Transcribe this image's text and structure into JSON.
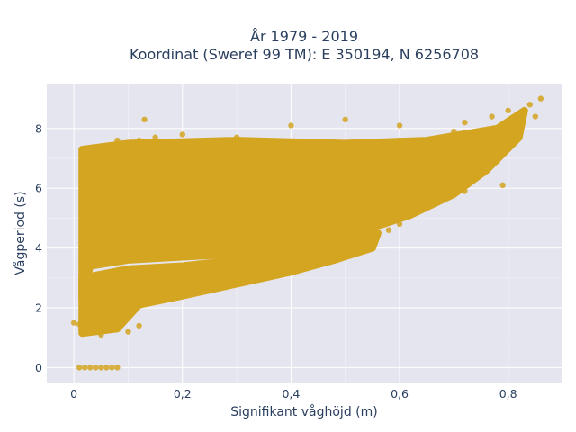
{
  "chart_data": {
    "type": "scatter",
    "title_line1": "År 1979 - 2019",
    "title_line2": "Koordinat (Sweref 99 TM): E 350194, N 6256708",
    "xlabel": "Signifikant våghöjd (m)",
    "ylabel": "Vågperiod (s)",
    "xlim": [
      -0.05,
      0.9
    ],
    "ylim": [
      -0.5,
      9.5
    ],
    "x_ticks": [
      0,
      0.2,
      0.4,
      0.6,
      0.8
    ],
    "x_tick_labels": [
      "0",
      "0,2",
      "0,4",
      "0,6",
      "0,8"
    ],
    "y_ticks": [
      0,
      2,
      4,
      6,
      8
    ],
    "y_tick_labels": [
      "0",
      "2",
      "4",
      "6",
      "8"
    ],
    "grid": true,
    "legend": "none",
    "marker_color": "#D4A520",
    "plot_background": "#e5e5ef",
    "points": [
      {
        "x": 0.0,
        "y": 1.5
      },
      {
        "x": 0.01,
        "y": 1.45
      },
      {
        "x": 0.01,
        "y": 0.0
      },
      {
        "x": 0.02,
        "y": 0.0
      },
      {
        "x": 0.03,
        "y": 0.0
      },
      {
        "x": 0.04,
        "y": 0.0
      },
      {
        "x": 0.05,
        "y": 0.0
      },
      {
        "x": 0.06,
        "y": 0.0
      },
      {
        "x": 0.07,
        "y": 0.0
      },
      {
        "x": 0.08,
        "y": 0.0
      },
      {
        "x": 0.02,
        "y": 1.2
      },
      {
        "x": 0.03,
        "y": 1.4
      },
      {
        "x": 0.05,
        "y": 1.1
      },
      {
        "x": 0.06,
        "y": 1.5
      },
      {
        "x": 0.08,
        "y": 1.3
      },
      {
        "x": 0.1,
        "y": 1.2
      },
      {
        "x": 0.12,
        "y": 1.4
      },
      {
        "x": 0.02,
        "y": 2.0
      },
      {
        "x": 0.03,
        "y": 2.6
      },
      {
        "x": 0.04,
        "y": 3.0
      },
      {
        "x": 0.05,
        "y": 3.6
      },
      {
        "x": 0.06,
        "y": 4.2
      },
      {
        "x": 0.07,
        "y": 4.8
      },
      {
        "x": 0.08,
        "y": 5.4
      },
      {
        "x": 0.03,
        "y": 6.0
      },
      {
        "x": 0.04,
        "y": 6.6
      },
      {
        "x": 0.05,
        "y": 7.0
      },
      {
        "x": 0.06,
        "y": 7.4
      },
      {
        "x": 0.08,
        "y": 7.6
      },
      {
        "x": 0.1,
        "y": 7.2
      },
      {
        "x": 0.12,
        "y": 7.6
      },
      {
        "x": 0.13,
        "y": 8.3
      },
      {
        "x": 0.15,
        "y": 7.7
      },
      {
        "x": 0.1,
        "y": 2.2
      },
      {
        "x": 0.12,
        "y": 2.8
      },
      {
        "x": 0.15,
        "y": 3.3
      },
      {
        "x": 0.18,
        "y": 2.5
      },
      {
        "x": 0.2,
        "y": 2.9
      },
      {
        "x": 0.22,
        "y": 3.4
      },
      {
        "x": 0.25,
        "y": 2.7
      },
      {
        "x": 0.28,
        "y": 3.1
      },
      {
        "x": 0.3,
        "y": 2.9
      },
      {
        "x": 0.33,
        "y": 3.3
      },
      {
        "x": 0.35,
        "y": 3.0
      },
      {
        "x": 0.38,
        "y": 3.5
      },
      {
        "x": 0.4,
        "y": 3.3
      },
      {
        "x": 0.42,
        "y": 3.7
      },
      {
        "x": 0.45,
        "y": 3.5
      },
      {
        "x": 0.48,
        "y": 3.9
      },
      {
        "x": 0.5,
        "y": 3.8
      },
      {
        "x": 0.53,
        "y": 4.2
      },
      {
        "x": 0.55,
        "y": 4.3
      },
      {
        "x": 0.58,
        "y": 4.6
      },
      {
        "x": 0.6,
        "y": 4.8
      },
      {
        "x": 0.62,
        "y": 5.2
      },
      {
        "x": 0.65,
        "y": 5.5
      },
      {
        "x": 0.68,
        "y": 5.9
      },
      {
        "x": 0.7,
        "y": 6.2
      },
      {
        "x": 0.72,
        "y": 6.6
      },
      {
        "x": 0.75,
        "y": 7.0
      },
      {
        "x": 0.78,
        "y": 7.4
      },
      {
        "x": 0.8,
        "y": 7.8
      },
      {
        "x": 0.82,
        "y": 8.3
      },
      {
        "x": 0.84,
        "y": 8.8
      },
      {
        "x": 0.86,
        "y": 9.0
      },
      {
        "x": 0.1,
        "y": 4.0
      },
      {
        "x": 0.12,
        "y": 5.0
      },
      {
        "x": 0.14,
        "y": 6.0
      },
      {
        "x": 0.16,
        "y": 4.5
      },
      {
        "x": 0.18,
        "y": 5.5
      },
      {
        "x": 0.2,
        "y": 6.5
      },
      {
        "x": 0.2,
        "y": 7.8
      },
      {
        "x": 0.22,
        "y": 4.6
      },
      {
        "x": 0.25,
        "y": 5.3
      },
      {
        "x": 0.27,
        "y": 6.3
      },
      {
        "x": 0.3,
        "y": 7.7
      },
      {
        "x": 0.32,
        "y": 4.9
      },
      {
        "x": 0.35,
        "y": 5.6
      },
      {
        "x": 0.37,
        "y": 6.5
      },
      {
        "x": 0.4,
        "y": 7.5
      },
      {
        "x": 0.4,
        "y": 8.1
      },
      {
        "x": 0.43,
        "y": 5.1
      },
      {
        "x": 0.45,
        "y": 5.9
      },
      {
        "x": 0.47,
        "y": 6.8
      },
      {
        "x": 0.5,
        "y": 7.4
      },
      {
        "x": 0.5,
        "y": 8.3
      },
      {
        "x": 0.53,
        "y": 5.4
      },
      {
        "x": 0.55,
        "y": 6.1
      },
      {
        "x": 0.57,
        "y": 7.0
      },
      {
        "x": 0.6,
        "y": 7.6
      },
      {
        "x": 0.6,
        "y": 8.1
      },
      {
        "x": 0.62,
        "y": 6.1
      },
      {
        "x": 0.65,
        "y": 6.8
      },
      {
        "x": 0.67,
        "y": 7.4
      },
      {
        "x": 0.7,
        "y": 7.9
      },
      {
        "x": 0.72,
        "y": 8.2
      },
      {
        "x": 0.75,
        "y": 7.6
      },
      {
        "x": 0.77,
        "y": 8.4
      },
      {
        "x": 0.8,
        "y": 8.6
      },
      {
        "x": 0.82,
        "y": 7.9
      },
      {
        "x": 0.85,
        "y": 8.4
      },
      {
        "x": 0.55,
        "y": 4.9
      },
      {
        "x": 0.6,
        "y": 5.3
      },
      {
        "x": 0.65,
        "y": 5.8
      },
      {
        "x": 0.7,
        "y": 6.6
      },
      {
        "x": 0.72,
        "y": 5.9
      },
      {
        "x": 0.75,
        "y": 6.5
      },
      {
        "x": 0.78,
        "y": 6.9
      },
      {
        "x": 0.79,
        "y": 6.1
      },
      {
        "x": 0.26,
        "y": 4.2
      },
      {
        "x": 0.34,
        "y": 4.4
      },
      {
        "x": 0.42,
        "y": 4.5
      },
      {
        "x": 0.46,
        "y": 4.2
      }
    ]
  }
}
